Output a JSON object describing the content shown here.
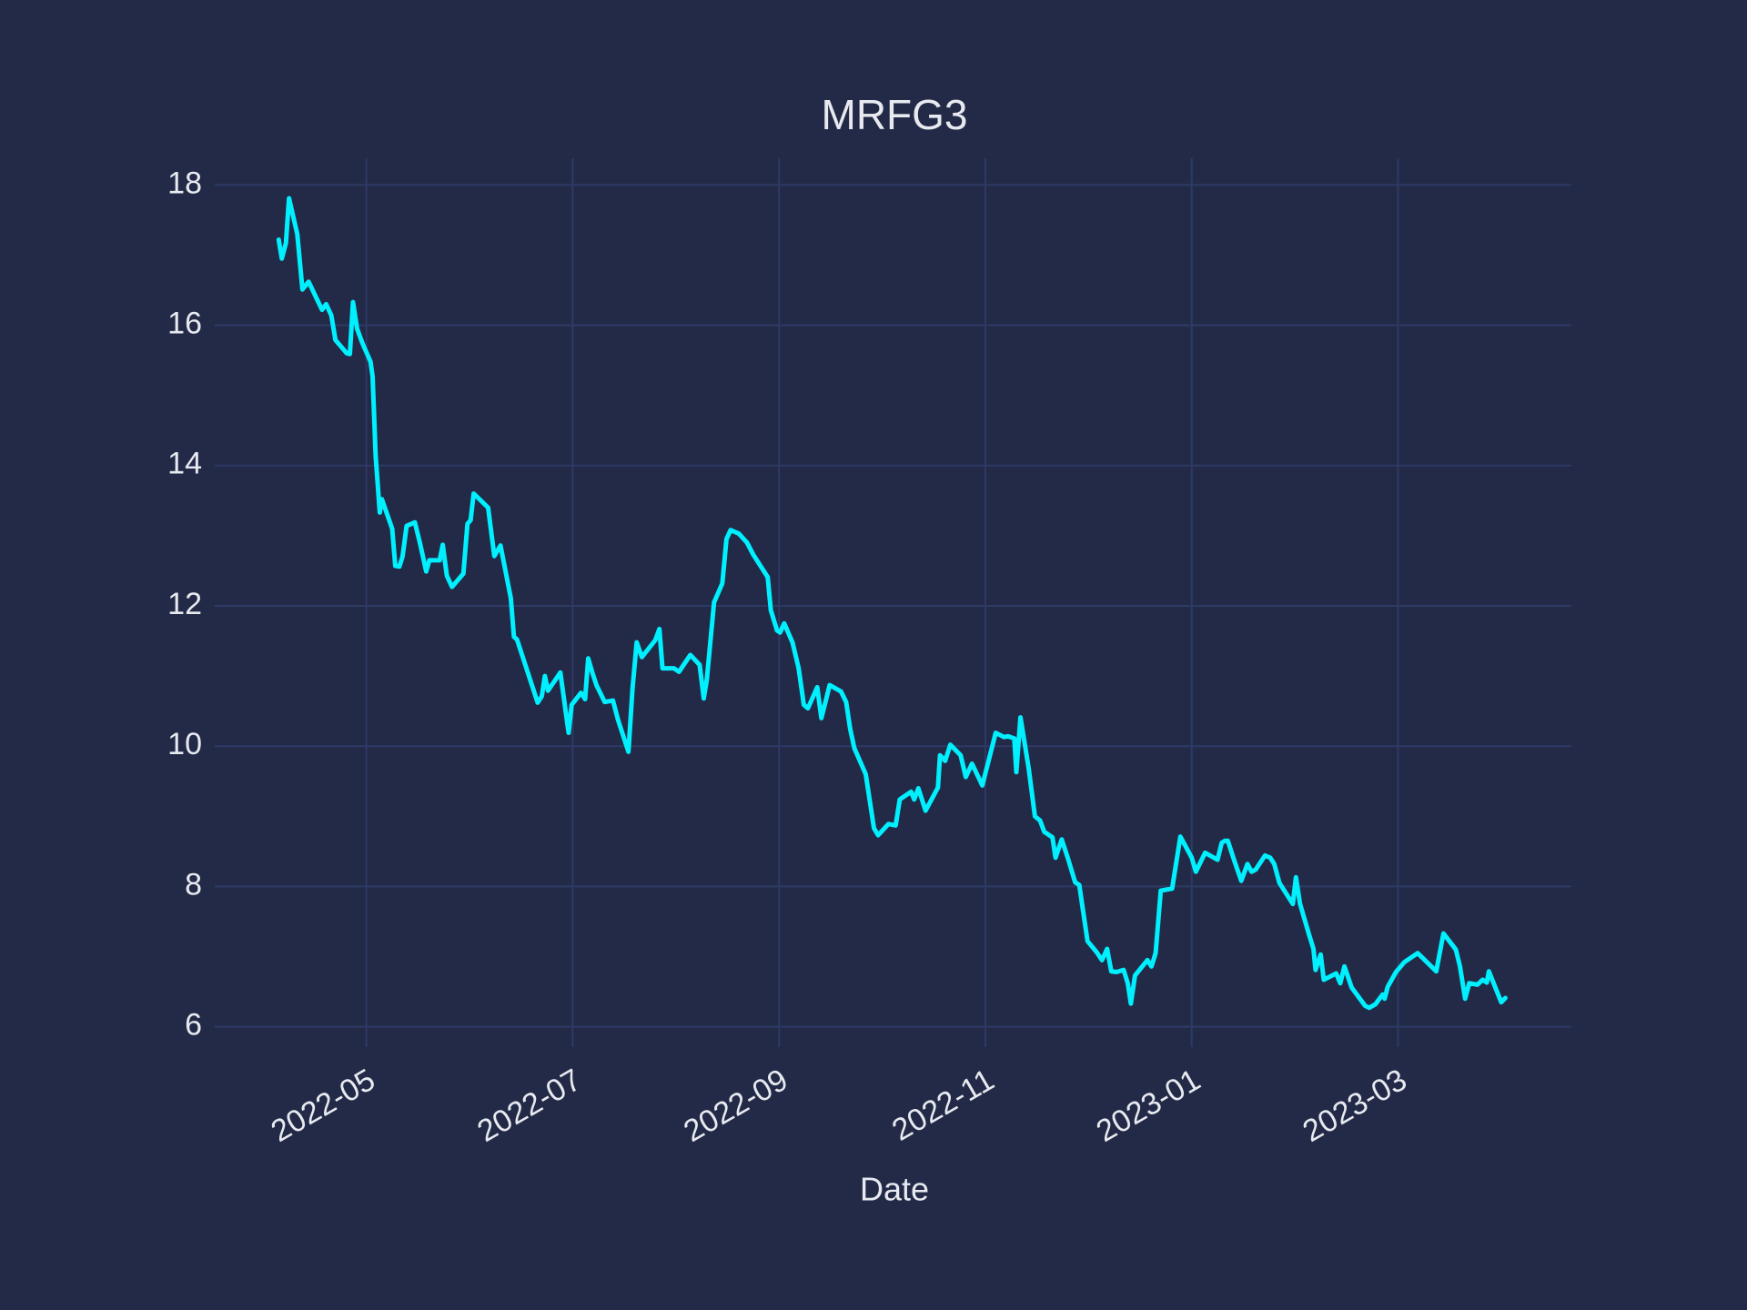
{
  "chart_data": {
    "type": "line",
    "title": "MRFG3",
    "x_label": "Date",
    "color": "#00f0ff",
    "grid": true,
    "x": [
      4.15,
      4.18,
      4.22,
      4.25,
      4.33,
      4.38,
      4.44,
      4.57,
      4.61,
      4.66,
      4.7,
      4.81,
      4.84,
      4.87,
      4.91,
      4.96,
      5.04,
      5.06,
      5.09,
      5.13,
      5.15,
      5.25,
      5.28,
      5.32,
      5.35,
      5.39,
      5.47,
      5.52,
      5.58,
      5.61,
      5.71,
      5.74,
      5.78,
      5.83,
      5.94,
      5.98,
      6.01,
      6.04,
      6.18,
      6.24,
      6.3,
      6.4,
      6.43,
      6.46,
      6.66,
      6.7,
      6.73,
      6.76,
      6.88,
      6.96,
      6.99,
      7.08,
      7.12,
      7.15,
      7.19,
      7.23,
      7.31,
      7.39,
      7.44,
      7.54,
      7.58,
      7.62,
      7.67,
      7.8,
      7.84,
      7.87,
      7.98,
      8.03,
      8.14,
      8.23,
      8.27,
      8.3,
      8.37,
      8.45,
      8.49,
      8.53,
      8.61,
      8.69,
      8.75,
      8.89,
      8.92,
      8.98,
      9.01,
      9.05,
      9.13,
      9.19,
      9.24,
      9.28,
      9.37,
      9.41,
      9.45,
      9.49,
      9.6,
      9.65,
      9.69,
      9.73,
      9.84,
      9.92,
      9.96,
      10.06,
      10.13,
      10.17,
      10.28,
      10.31,
      10.35,
      10.42,
      10.54,
      10.56,
      10.61,
      10.66,
      10.76,
      10.81,
      10.87,
      10.97,
      11.1,
      11.18,
      11.22,
      11.28,
      11.3,
      11.34,
      11.42,
      11.48,
      11.53,
      11.57,
      11.65,
      11.68,
      11.74,
      11.8,
      11.87,
      11.91,
      11.99,
      12.08,
      12.13,
      12.18,
      12.22,
      12.27,
      12.34,
      12.38,
      12.41,
      12.45,
      12.57,
      12.61,
      12.65,
      12.7,
      12.81,
      12.89,
      13.0,
      13.04,
      13.13,
      13.25,
      13.29,
      13.32,
      13.35,
      13.41,
      13.48,
      13.54,
      13.58,
      13.62,
      13.71,
      13.76,
      13.8,
      13.85,
      13.98,
      14.01,
      14.05,
      14.14,
      14.18,
      14.2,
      14.25,
      14.28,
      14.4,
      14.44,
      14.48,
      14.55,
      14.68,
      14.72,
      14.78,
      14.85,
      14.87,
      14.9,
      14.98,
      15.06,
      15.19,
      15.37,
      15.44,
      15.56,
      15.6,
      15.65,
      15.69,
      15.77,
      15.82,
      15.86,
      15.88,
      16.0,
      16.04
    ],
    "values": [
      17.22,
      16.95,
      17.17,
      17.81,
      17.3,
      16.51,
      16.62,
      16.22,
      16.3,
      16.14,
      15.79,
      15.6,
      15.59,
      16.33,
      15.95,
      15.75,
      15.48,
      15.27,
      14.13,
      13.33,
      13.52,
      13.1,
      12.57,
      12.56,
      12.7,
      13.14,
      13.19,
      12.89,
      12.49,
      12.65,
      12.65,
      12.87,
      12.43,
      12.27,
      12.46,
      13.17,
      13.22,
      13.6,
      13.4,
      12.71,
      12.86,
      12.11,
      11.56,
      11.52,
      10.62,
      10.71,
      11.0,
      10.79,
      11.05,
      10.19,
      10.59,
      10.76,
      10.67,
      11.25,
      11.05,
      10.87,
      10.63,
      10.65,
      10.37,
      9.92,
      10.83,
      11.48,
      11.27,
      11.51,
      11.67,
      11.11,
      11.11,
      11.06,
      11.3,
      11.16,
      10.68,
      10.95,
      12.05,
      12.32,
      12.95,
      13.08,
      13.03,
      12.9,
      12.73,
      12.41,
      11.94,
      11.65,
      11.62,
      11.75,
      11.48,
      11.11,
      10.59,
      10.54,
      10.84,
      10.4,
      10.63,
      10.87,
      10.78,
      10.63,
      10.24,
      9.97,
      9.6,
      8.83,
      8.73,
      8.89,
      8.87,
      9.24,
      9.35,
      9.24,
      9.4,
      9.08,
      9.41,
      9.87,
      9.79,
      10.02,
      9.87,
      9.56,
      9.75,
      9.44,
      10.19,
      10.13,
      10.14,
      10.11,
      9.63,
      10.41,
      9.68,
      9.0,
      8.94,
      8.78,
      8.7,
      8.41,
      8.67,
      8.4,
      8.06,
      8.02,
      7.22,
      7.06,
      6.95,
      7.11,
      6.79,
      6.78,
      6.81,
      6.62,
      6.33,
      6.73,
      6.95,
      6.86,
      7.05,
      7.94,
      7.97,
      8.71,
      8.41,
      8.21,
      8.48,
      8.38,
      8.62,
      8.65,
      8.65,
      8.38,
      8.08,
      8.32,
      8.21,
      8.24,
      8.44,
      8.41,
      8.32,
      8.05,
      7.75,
      8.13,
      7.75,
      7.3,
      7.11,
      6.81,
      7.03,
      6.67,
      6.76,
      6.62,
      6.86,
      6.56,
      6.3,
      6.27,
      6.32,
      6.46,
      6.4,
      6.57,
      6.78,
      6.92,
      7.05,
      6.79,
      7.33,
      7.1,
      6.86,
      6.4,
      6.62,
      6.6,
      6.67,
      6.63,
      6.79,
      6.35,
      6.41
    ],
    "xlim": [
      3.53,
      16.68
    ],
    "xticks": [
      {
        "value": 5,
        "label": "2022-05"
      },
      {
        "value": 7,
        "label": "2022-07"
      },
      {
        "value": 9,
        "label": "2022-09"
      },
      {
        "value": 11,
        "label": "2022-11"
      },
      {
        "value": 13,
        "label": "2023-01"
      },
      {
        "value": 15,
        "label": "2023-03"
      }
    ],
    "ylim": [
      5.71,
      18.38
    ],
    "yticks": [
      6,
      8,
      10,
      12,
      14,
      16,
      18
    ]
  }
}
